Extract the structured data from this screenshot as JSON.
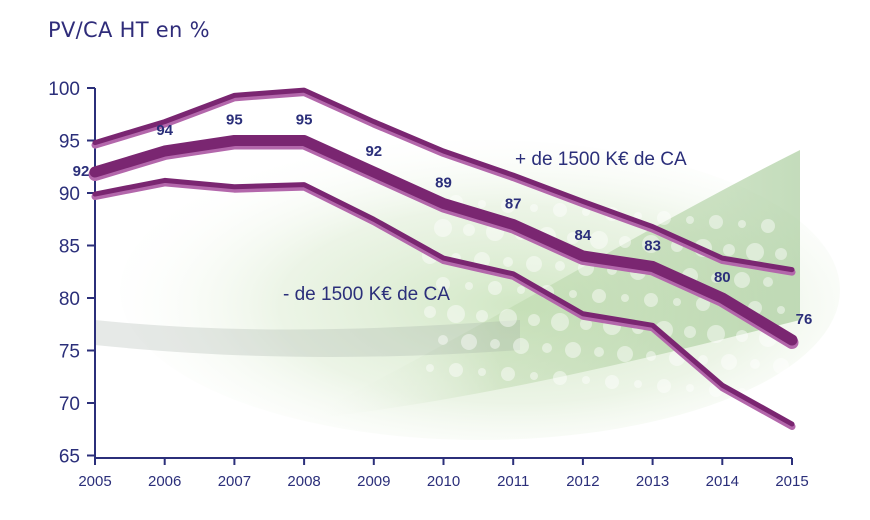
{
  "chart_data": {
    "type": "line",
    "title": "PV/CA HT en %",
    "xlabel": "",
    "ylabel": "",
    "categories": [
      "2005",
      "2006",
      "2007",
      "2008",
      "2009",
      "2010",
      "2011",
      "2012",
      "2013",
      "2014",
      "2015"
    ],
    "yticks": [
      "100",
      "95",
      "90",
      "85",
      "80",
      "75",
      "70",
      "65"
    ],
    "ylim": [
      65,
      100
    ],
    "grid": false,
    "colors": {
      "series_dark": "#7a2671",
      "series_light": "#b367ab",
      "text": "#2b2f7a",
      "axis": "#2b2f7a"
    },
    "series": [
      {
        "name": "+ de 1500 K€ de CA",
        "values": [
          94.8,
          96.8,
          99.3,
          99.8,
          96.8,
          94.0,
          91.7,
          89.2,
          86.8,
          83.8,
          82.7
        ],
        "labels": []
      },
      {
        "name": "",
        "values": [
          92,
          94,
          95,
          95,
          92,
          89,
          87,
          84,
          83,
          80,
          76
        ],
        "labels": [
          "92",
          "94",
          "95",
          "95",
          "92",
          "89",
          "87",
          "84",
          "83",
          "80",
          "76"
        ]
      },
      {
        "name": "- de 1500 K€ de CA",
        "values": [
          89.9,
          91.2,
          90.6,
          90.8,
          87.5,
          83.8,
          82.3,
          78.5,
          77.4,
          71.7,
          68.0
        ],
        "labels": []
      }
    ]
  }
}
